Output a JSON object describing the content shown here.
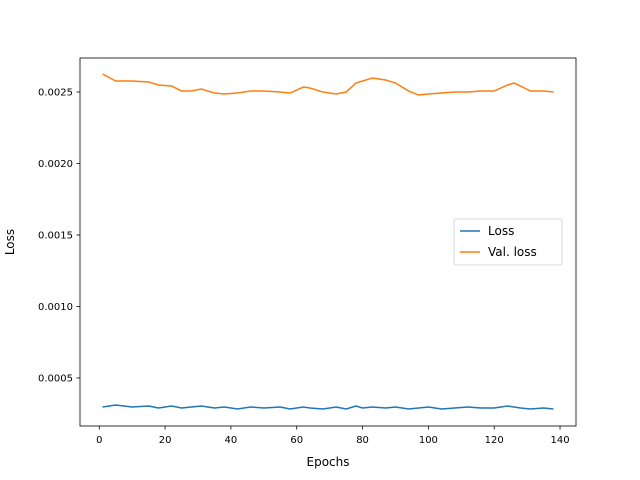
{
  "chart_data": {
    "type": "line",
    "x_label": "Epochs",
    "y_label": "Loss",
    "x": [
      1,
      5,
      10,
      15,
      18,
      22,
      25,
      28,
      31,
      35,
      38,
      42,
      46,
      50,
      55,
      58,
      62,
      64,
      68,
      72,
      75,
      78,
      80,
      83,
      87,
      90,
      94,
      97,
      100,
      104,
      108,
      112,
      116,
      120,
      124,
      126,
      128,
      131,
      135,
      138
    ],
    "series": [
      {
        "name": "Loss",
        "color": "#1f77b4",
        "values": [
          0.000297,
          0.000311,
          0.000297,
          0.000304,
          0.00029,
          0.000304,
          0.00029,
          0.000297,
          0.000304,
          0.00029,
          0.000297,
          0.000283,
          0.000297,
          0.00029,
          0.000297,
          0.000283,
          0.000297,
          0.00029,
          0.000283,
          0.000297,
          0.000283,
          0.000304,
          0.00029,
          0.000297,
          0.00029,
          0.000297,
          0.000283,
          0.00029,
          0.000297,
          0.000283,
          0.00029,
          0.000297,
          0.00029,
          0.00029,
          0.000304,
          0.000297,
          0.00029,
          0.000283,
          0.00029,
          0.000283
        ]
      },
      {
        "name": "Val. loss",
        "color": "#ff7f0e",
        "values": [
          0.002626,
          0.002577,
          0.002577,
          0.00257,
          0.002549,
          0.002542,
          0.002507,
          0.002507,
          0.002521,
          0.002493,
          0.002486,
          0.002493,
          0.002507,
          0.002507,
          0.0025,
          0.002493,
          0.002535,
          0.002528,
          0.0025,
          0.002486,
          0.0025,
          0.002563,
          0.002577,
          0.002598,
          0.002584,
          0.002563,
          0.002507,
          0.002479,
          0.002486,
          0.002493,
          0.0025,
          0.0025,
          0.002507,
          0.002507,
          0.002549,
          0.002563,
          0.002542,
          0.002507,
          0.002507,
          0.0025
        ]
      }
    ],
    "xlim": [
      -5.85,
      144.85
    ],
    "xticks": [
      0,
      20,
      40,
      60,
      80,
      100,
      120,
      140
    ],
    "ylim": [
      0.000164,
      0.002738
    ],
    "yticks": [
      0.0005,
      {
        "value": 0.001,
        "label": "0.0010"
      },
      0.0015,
      {
        "value": 0.002,
        "label": "0.0020"
      },
      0.0025
    ],
    "legend": "center right"
  }
}
